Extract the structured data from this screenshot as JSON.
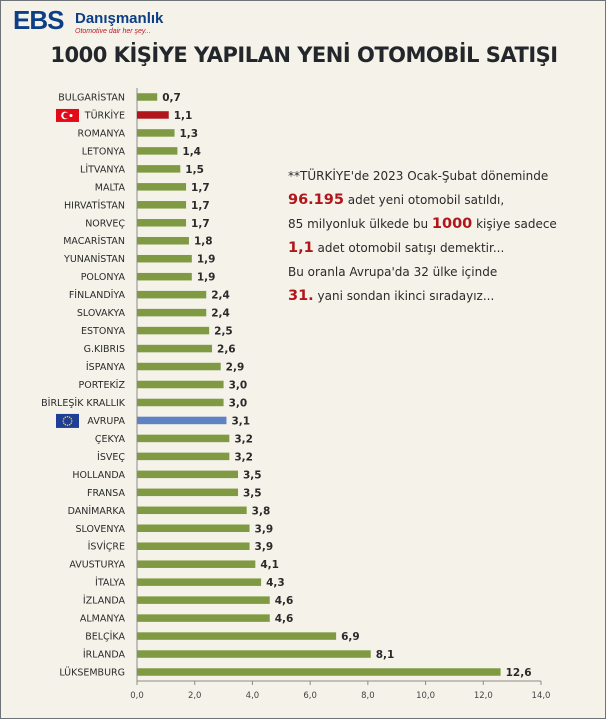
{
  "logo": {
    "mark": "EBS",
    "name": "Danışmanlık",
    "tagline": "Otomotive dair her şey..."
  },
  "colors": {
    "bar": "#809a43",
    "highlight_turkey": "#b0161b",
    "highlight_europe": "#5e83c2",
    "background": "#f4f2e9"
  },
  "note": {
    "line1": "**TÜRKİYE'de 2023 Ocak-Şubat döneminde",
    "line2_num": "96.195",
    "line2_text": " adet yeni otomobil satıldı,",
    "line3_pre": "85 milyonluk ülkede bu ",
    "line3_num": "1000",
    "line3_post": " kişiye sadece",
    "line4_num": "1,1",
    "line4_text": " adet otomobil satışı demektir...",
    "line5": "Bu oranla Avrupa'da 32 ülke içinde",
    "line6_num": "31.",
    "line6_text": " yani sondan ikinci sıradayız..."
  },
  "chart_data": {
    "type": "bar",
    "orientation": "horizontal",
    "title": "1000 KİŞİYE YAPILAN YENİ OTOMOBİL  SATIŞI",
    "categories": [
      "BULGARİSTAN",
      "TÜRKİYE",
      "ROMANYA",
      "LETONYA",
      "LİTVANYA",
      "MALTA",
      "HIRVATİSTAN",
      "NORVEÇ",
      "MACARİSTAN",
      "YUNANİSTAN",
      "POLONYA",
      "FİNLANDİYA",
      "SLOVAKYA",
      "ESTONYA",
      "G.KIBRIS",
      "İSPANYA",
      "PORTEKİZ",
      "BİRLEŞİK KRALLIK",
      "AVRUPA",
      "ÇEKYA",
      "İSVEÇ",
      "HOLLANDA",
      "FRANSA",
      "DANİMARKA",
      "SLOVENYA",
      "İSVİÇRE",
      "AVUSTURYA",
      "İTALYA",
      "İZLANDA",
      "ALMANYA",
      "BELÇİKA",
      "İRLANDA",
      "LÜKSEMBURG"
    ],
    "values": [
      0.7,
      1.1,
      1.3,
      1.4,
      1.5,
      1.7,
      1.7,
      1.7,
      1.8,
      1.9,
      1.9,
      2.4,
      2.4,
      2.5,
      2.6,
      2.9,
      3.0,
      3.0,
      3.1,
      3.2,
      3.2,
      3.5,
      3.5,
      3.8,
      3.9,
      3.9,
      4.1,
      4.3,
      4.6,
      4.6,
      6.9,
      8.1,
      12.6
    ],
    "value_labels": [
      "0,7",
      "1,1",
      "1,3",
      "1,4",
      "1,5",
      "1,7",
      "1,7",
      "1,7",
      "1,8",
      "1,9",
      "1,9",
      "2,4",
      "2,4",
      "2,5",
      "2,6",
      "2,9",
      "3,0",
      "3,0",
      "3,1",
      "3,2",
      "3,2",
      "3,5",
      "3,5",
      "3,8",
      "3,9",
      "3,9",
      "4,1",
      "4,3",
      "4,6",
      "4,6",
      "6,9",
      "8,1",
      "12,6"
    ],
    "highlights": {
      "TÜRKİYE": "turkey",
      "AVRUPA": "europe"
    },
    "xlim": [
      0,
      14
    ],
    "xticks": [
      0,
      2,
      4,
      6,
      8,
      10,
      12,
      14
    ],
    "xtick_labels": [
      "0,0",
      "2,0",
      "4,0",
      "6,0",
      "8,0",
      "10,0",
      "12,0",
      "14,0"
    ],
    "grid": false,
    "legend": "none"
  }
}
